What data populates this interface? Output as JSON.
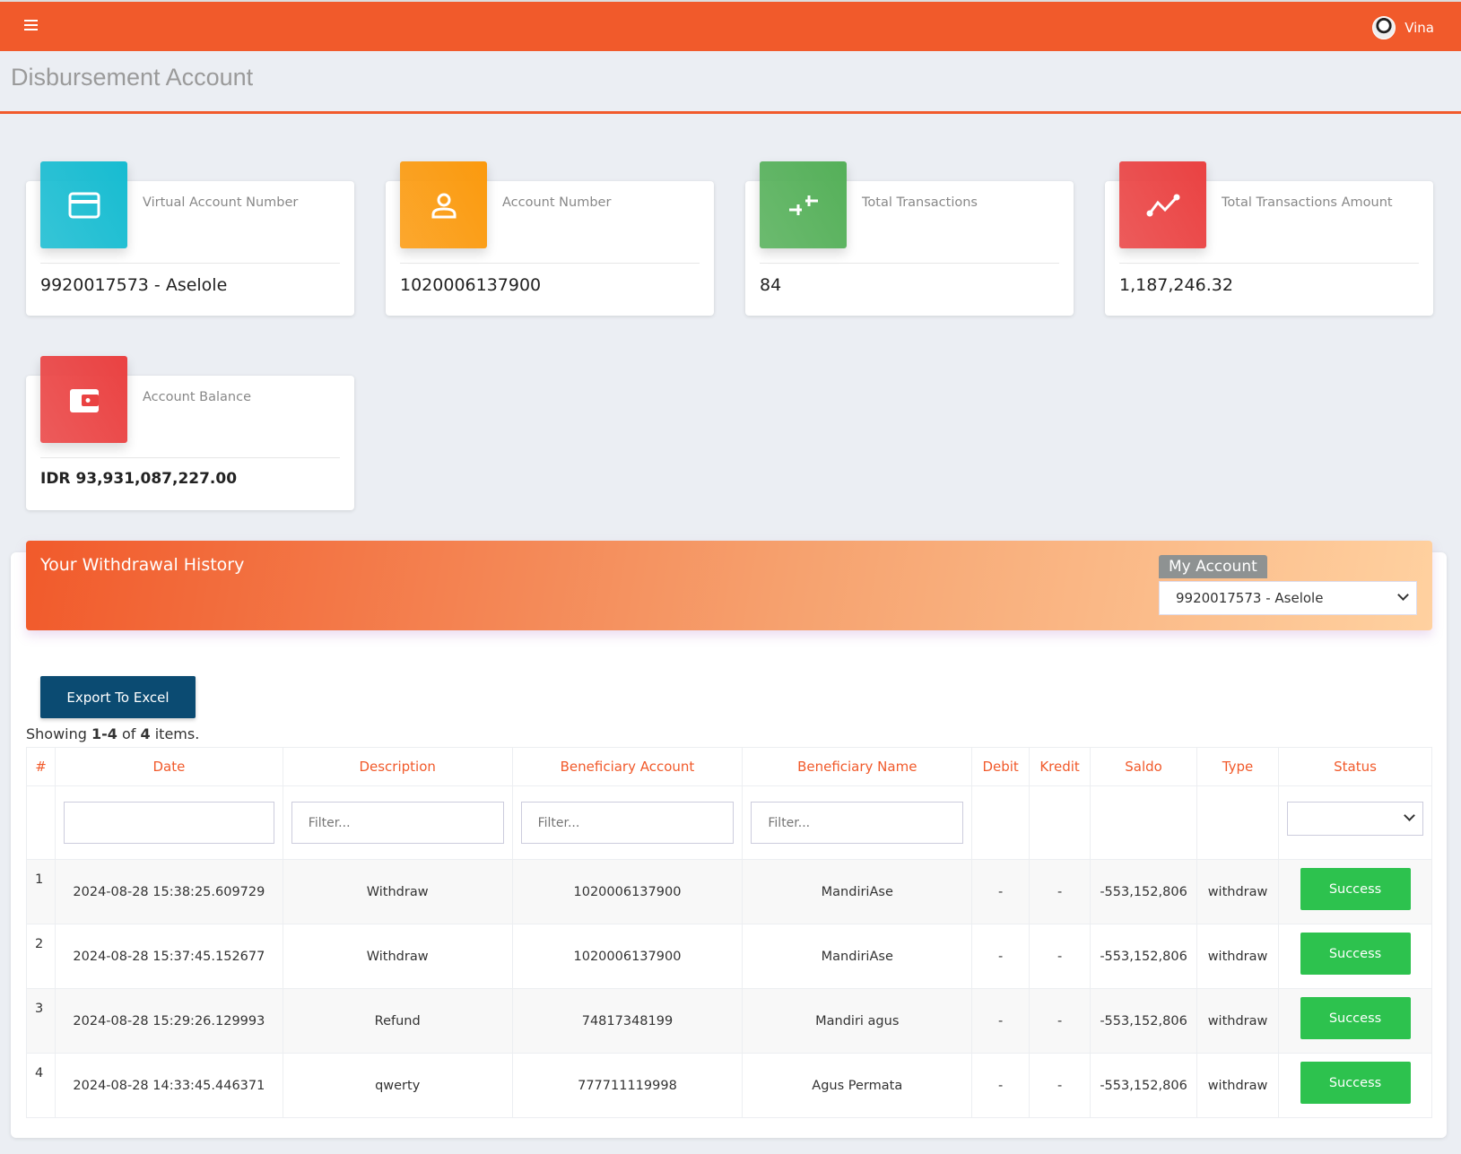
{
  "topbar": {
    "user": "Vina"
  },
  "page_title": "Disbursement Account",
  "cards": [
    {
      "label": "Virtual Account Number",
      "value": "9920017573 - Aselole",
      "icon": "credit-card-icon",
      "color": "#17bcd1"
    },
    {
      "label": "Account Number",
      "value": "1020006137900",
      "icon": "user-icon",
      "color": "#fb9a0e"
    },
    {
      "label": "Total Transactions",
      "value": "84",
      "icon": "transfer-arrows-icon",
      "color": "#55b059"
    },
    {
      "label": "Total Transactions Amount",
      "value": "1,187,246.32",
      "icon": "trend-line-icon",
      "color": "#ea4242"
    },
    {
      "label": "Account Balance",
      "value": "IDR 93,931,087,227.00",
      "icon": "wallet-icon",
      "color": "#ea4242"
    }
  ],
  "history": {
    "title": "Your Withdrawal History",
    "account_label": "My Account",
    "account_selected": "9920017573 - Aselole",
    "export_label": "Export To Excel",
    "showing": {
      "prefix": "Showing ",
      "range": "1-4",
      "mid": " of ",
      "total": "4",
      "suffix": " items."
    },
    "columns": [
      "#",
      "Date",
      "Description",
      "Beneficiary Account",
      "Beneficiary Name",
      "Debit",
      "Kredit",
      "Saldo",
      "Type",
      "Status"
    ],
    "filter_placeholder": "Filter...",
    "rows": [
      {
        "n": "1",
        "date": "2024-08-28 15:38:25.609729",
        "desc": "Withdraw",
        "acct": "1020006137900",
        "name": "MandiriAse",
        "debit": "-",
        "kredit": "-",
        "saldo": "-553,152,806",
        "type": "withdraw",
        "status": "Success"
      },
      {
        "n": "2",
        "date": "2024-08-28 15:37:45.152677",
        "desc": "Withdraw",
        "acct": "1020006137900",
        "name": "MandiriAse",
        "debit": "-",
        "kredit": "-",
        "saldo": "-553,152,806",
        "type": "withdraw",
        "status": "Success"
      },
      {
        "n": "3",
        "date": "2024-08-28 15:29:26.129993",
        "desc": "Refund",
        "acct": "74817348199",
        "name": "Mandiri agus",
        "debit": "-",
        "kredit": "-",
        "saldo": "-553,152,806",
        "type": "withdraw",
        "status": "Success"
      },
      {
        "n": "4",
        "date": "2024-08-28 14:33:45.446371",
        "desc": "qwerty",
        "acct": "777711119998",
        "name": "Agus Permata",
        "debit": "-",
        "kredit": "-",
        "saldo": "-553,152,806",
        "type": "withdraw",
        "status": "Success"
      }
    ]
  }
}
